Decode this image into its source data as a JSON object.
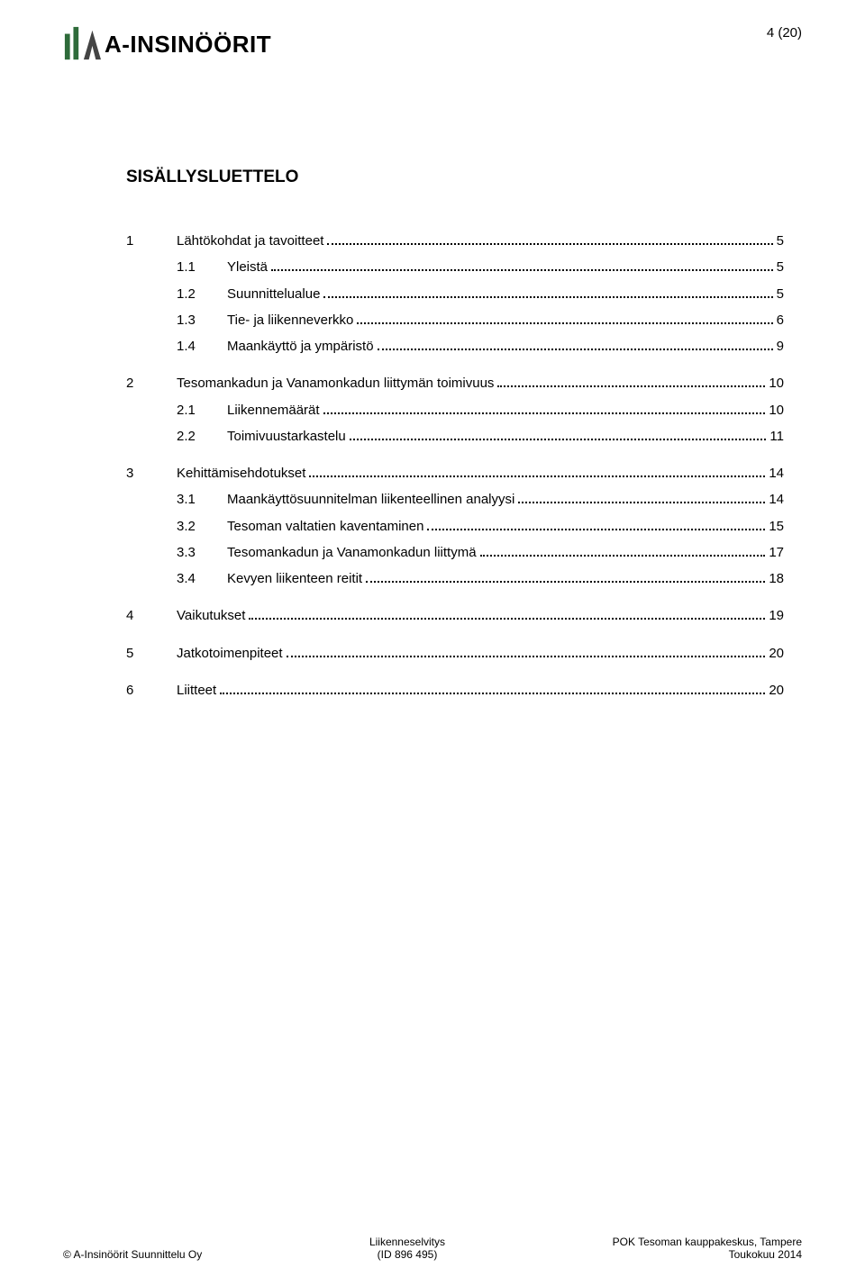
{
  "header": {
    "logo_text": "A-INSINÖÖRIT",
    "logo_colors": {
      "bars": "#2e6b3a",
      "a_shape": "#444444"
    },
    "page_indicator": "4 (20)"
  },
  "title": "SISÄLLYSLUETTELO",
  "toc": [
    {
      "num": "1",
      "label": "Lähtökohdat ja tavoitteet",
      "page": "5",
      "children": [
        {
          "num": "1.1",
          "label": "Yleistä",
          "page": "5"
        },
        {
          "num": "1.2",
          "label": "Suunnittelualue",
          "page": "5"
        },
        {
          "num": "1.3",
          "label": "Tie- ja liikenneverkko",
          "page": "6"
        },
        {
          "num": "1.4",
          "label": "Maankäyttö ja ympäristö",
          "page": "9"
        }
      ]
    },
    {
      "num": "2",
      "label": "Tesomankadun ja Vanamonkadun liittymän toimivuus",
      "page": "10",
      "children": [
        {
          "num": "2.1",
          "label": "Liikennemäärät",
          "page": "10"
        },
        {
          "num": "2.2",
          "label": "Toimivuustarkastelu",
          "page": "11"
        }
      ]
    },
    {
      "num": "3",
      "label": "Kehittämisehdotukset",
      "page": "14",
      "children": [
        {
          "num": "3.1",
          "label": "Maankäyttösuunnitelman liikenteellinen analyysi",
          "page": "14"
        },
        {
          "num": "3.2",
          "label": "Tesoman valtatien kaventaminen",
          "page": "15"
        },
        {
          "num": "3.3",
          "label": "Tesomankadun ja Vanamonkadun liittymä",
          "page": "17"
        },
        {
          "num": "3.4",
          "label": "Kevyen liikenteen reitit",
          "page": "18"
        }
      ]
    },
    {
      "num": "4",
      "label": "Vaikutukset",
      "page": "19",
      "children": []
    },
    {
      "num": "5",
      "label": "Jatkotoimenpiteet",
      "page": "20",
      "children": []
    },
    {
      "num": "6",
      "label": "Liitteet",
      "page": "20",
      "children": []
    }
  ],
  "footer": {
    "left": "© A-Insinöörit Suunnittelu Oy",
    "center_line1": "Liikenneselvitys",
    "center_line2": "(ID 896 495)",
    "right_line1": "POK Tesoman kauppakeskus, Tampere",
    "right_line2": "Toukokuu 2014"
  },
  "colors": {
    "text": "#000000",
    "background": "#ffffff"
  }
}
